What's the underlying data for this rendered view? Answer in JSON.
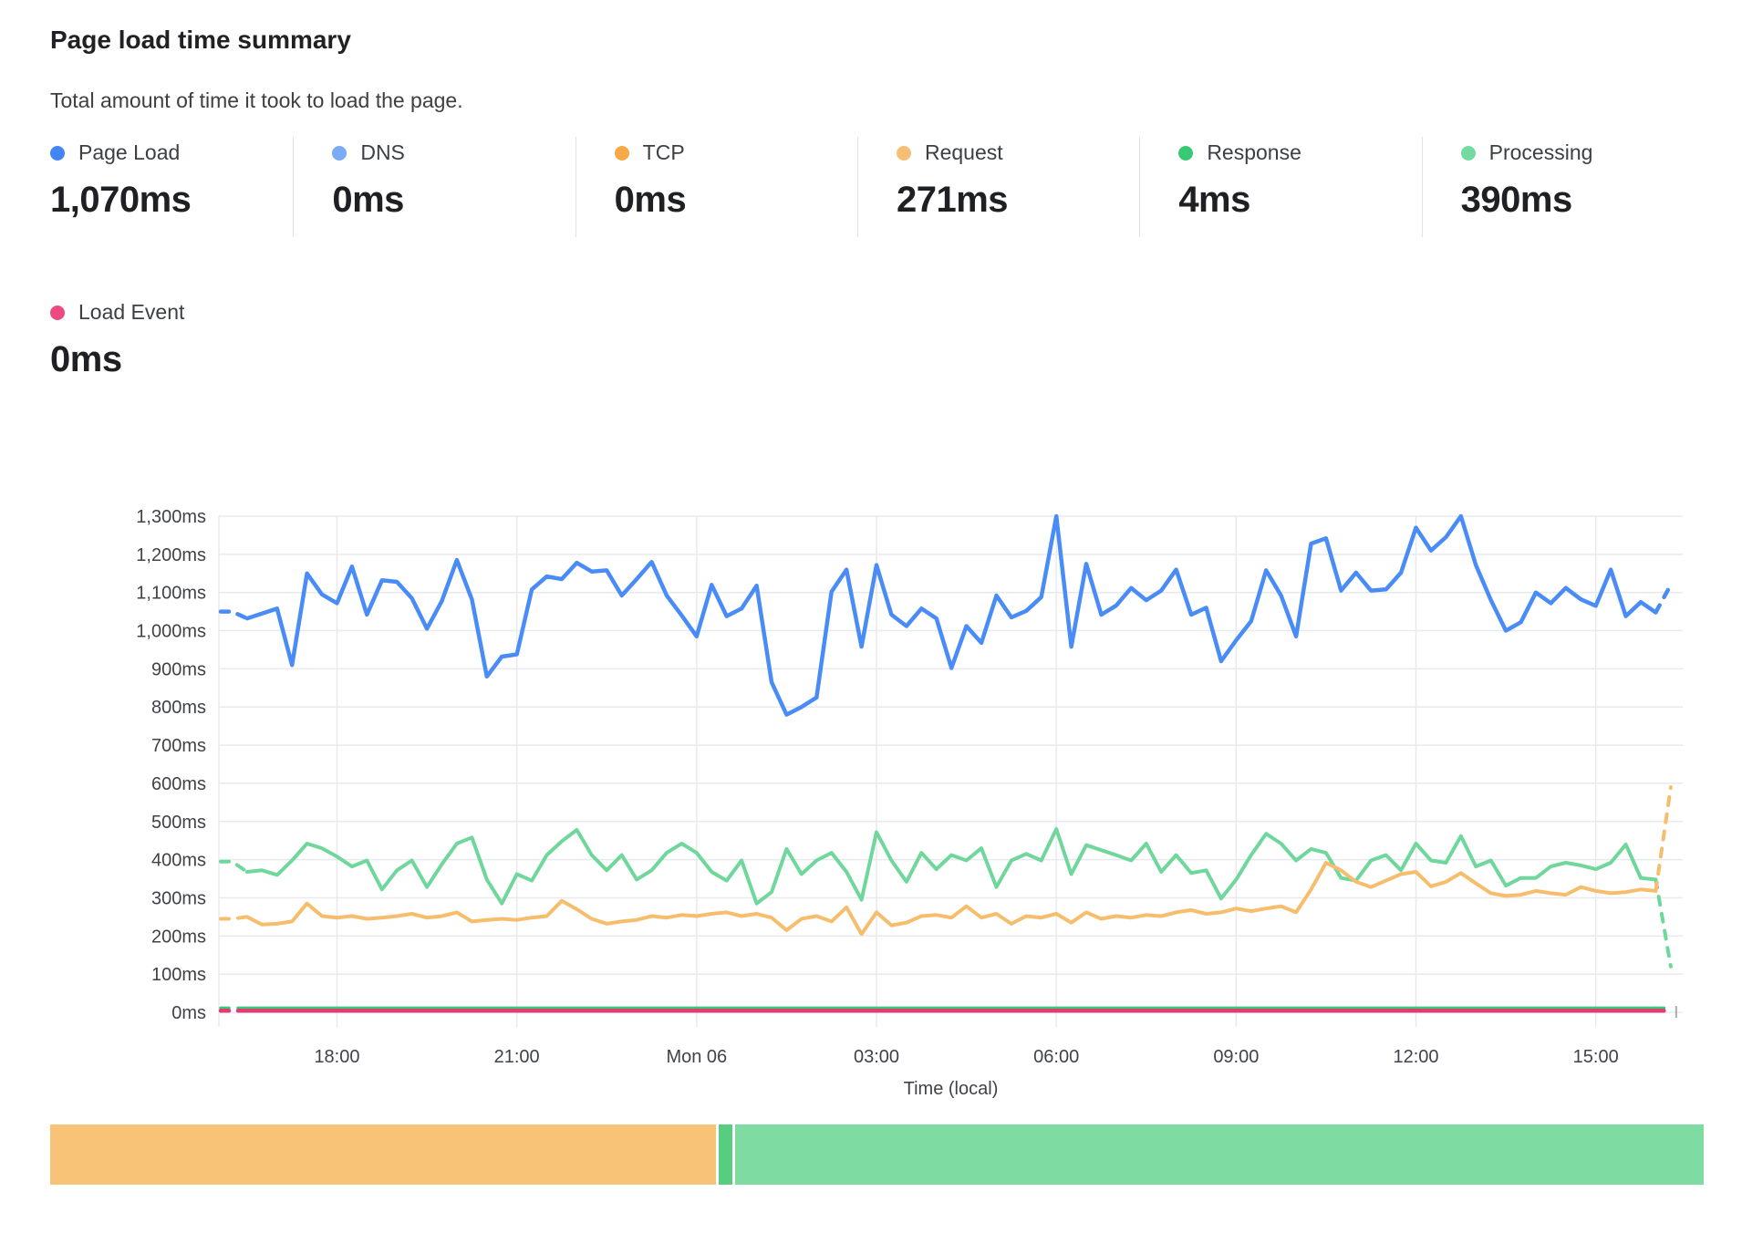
{
  "header": {
    "title": "Page load time summary",
    "subtitle": "Total amount of time it took to load the page."
  },
  "metrics": [
    {
      "label": "Page Load",
      "value": "1,070ms",
      "color": "#4285f4"
    },
    {
      "label": "DNS",
      "value": "0ms",
      "color": "#7baaf7"
    },
    {
      "label": "TCP",
      "value": "0ms",
      "color": "#f5a947"
    },
    {
      "label": "Request",
      "value": "271ms",
      "color": "#f7be75"
    },
    {
      "label": "Response",
      "value": "4ms",
      "color": "#3bc874"
    },
    {
      "label": "Processing",
      "value": "390ms",
      "color": "#74dba0"
    }
  ],
  "metrics_row2": [
    {
      "label": "Load Event",
      "value": "0ms",
      "color": "#ef4a7f"
    }
  ],
  "chart_data": {
    "type": "line",
    "title": "Page load time summary",
    "xlabel": "Time (local)",
    "ylabel": "",
    "ylim": [
      0,
      1300
    ],
    "grid": true,
    "x_unit": "hours_local",
    "x_start": 16.25,
    "x_step": 0.25,
    "x_axis_range": [
      16.03,
      40.45
    ],
    "x_ticks": [
      {
        "t": 18,
        "label": "18:00"
      },
      {
        "t": 21,
        "label": "21:00"
      },
      {
        "t": 24,
        "label": "Mon 06"
      },
      {
        "t": 27,
        "label": "03:00"
      },
      {
        "t": 30,
        "label": "06:00"
      },
      {
        "t": 33,
        "label": "09:00"
      },
      {
        "t": 36,
        "label": "12:00"
      },
      {
        "t": 39,
        "label": "15:00"
      }
    ],
    "y_ticks": [
      "0ms",
      "100ms",
      "200ms",
      "300ms",
      "400ms",
      "500ms",
      "600ms",
      "700ms",
      "800ms",
      "900ms",
      "1,000ms",
      "1,100ms",
      "1,200ms",
      "1,300ms"
    ],
    "series": [
      {
        "name": "Processing",
        "color": "#6fd79b",
        "stroke_width": 4,
        "values": [
          395,
          368,
          372,
          360,
          398,
          442,
          430,
          408,
          382,
          398,
          322,
          372,
          398,
          328,
          388,
          442,
          458,
          348,
          285,
          362,
          345,
          412,
          448,
          478,
          412,
          372,
          412,
          348,
          372,
          418,
          442,
          418,
          368,
          345,
          398,
          285,
          315,
          428,
          362,
          398,
          418,
          368,
          295,
          472,
          398,
          342,
          418,
          375,
          412,
          398,
          430,
          328,
          398,
          415,
          398,
          480,
          362,
          438,
          425,
          412,
          398,
          442,
          368,
          412,
          365,
          372,
          298,
          348,
          412,
          468,
          442,
          398,
          428,
          418,
          352,
          345,
          398,
          412,
          372,
          442,
          398,
          392,
          462,
          382,
          398,
          332,
          352,
          352,
          382,
          392,
          385,
          375,
          392,
          440,
          352,
          348,
          120
        ]
      },
      {
        "name": "Request",
        "color": "#f6bd6c",
        "stroke_width": 4,
        "values": [
          245,
          250,
          230,
          232,
          238,
          285,
          252,
          248,
          252,
          245,
          248,
          252,
          258,
          248,
          252,
          262,
          238,
          242,
          245,
          242,
          248,
          252,
          292,
          270,
          245,
          232,
          238,
          242,
          252,
          248,
          255,
          252,
          258,
          262,
          252,
          258,
          248,
          215,
          245,
          252,
          238,
          275,
          205,
          262,
          228,
          235,
          252,
          255,
          248,
          278,
          248,
          258,
          232,
          252,
          248,
          258,
          235,
          262,
          245,
          252,
          248,
          255,
          252,
          262,
          268,
          258,
          262,
          272,
          265,
          272,
          278,
          262,
          322,
          392,
          372,
          342,
          328,
          345,
          362,
          368,
          330,
          342,
          365,
          338,
          312,
          305,
          308,
          318,
          312,
          308,
          328,
          318,
          312,
          315,
          322,
          318,
          590
        ]
      },
      {
        "name": "Page Load",
        "color": "#4a8cf7",
        "stroke_width": 4.5,
        "values": [
          1050,
          1032,
          1045,
          1058,
          910,
          1150,
          1095,
          1072,
          1168,
          1042,
          1132,
          1128,
          1085,
          1005,
          1078,
          1185,
          1082,
          880,
          932,
          938,
          1108,
          1142,
          1135,
          1178,
          1155,
          1158,
          1092,
          1135,
          1180,
          1092,
          1040,
          985,
          1120,
          1038,
          1058,
          1118,
          865,
          780,
          800,
          825,
          1102,
          1160,
          958,
          1172,
          1042,
          1012,
          1058,
          1032,
          902,
          1012,
          968,
          1092,
          1035,
          1052,
          1088,
          1300,
          958,
          1175,
          1042,
          1066,
          1112,
          1080,
          1105,
          1160,
          1042,
          1060,
          920,
          975,
          1025,
          1158,
          1092,
          985,
          1228,
          1242,
          1105,
          1152,
          1105,
          1108,
          1152,
          1270,
          1210,
          1245,
          1300,
          1172,
          1080,
          1000,
          1022,
          1100,
          1072,
          1112,
          1082,
          1065,
          1160,
          1038,
          1075,
          1048,
          1120
        ]
      }
    ],
    "flat_series": [
      {
        "name": "Response",
        "color": "#3bc874",
        "stroke_width": 3.5,
        "flat_value": 11
      },
      {
        "name": "Load Event",
        "color": "#e23d72",
        "stroke_width": 4.5,
        "flat_value": 4
      }
    ]
  },
  "breakdown_bar": {
    "segments": [
      {
        "label": "Request",
        "color": "#f8c377",
        "fraction": 0.404
      },
      {
        "label": "Response",
        "color": "#57cd80",
        "fraction": 0.0085
      },
      {
        "label": "Processing",
        "color": "#7edca3",
        "fraction": 0.5875
      }
    ]
  },
  "style": {
    "grid_color": "#e9eaed",
    "axis_text_color": "#3f4247",
    "end_tick_color": "#aaadb1"
  }
}
